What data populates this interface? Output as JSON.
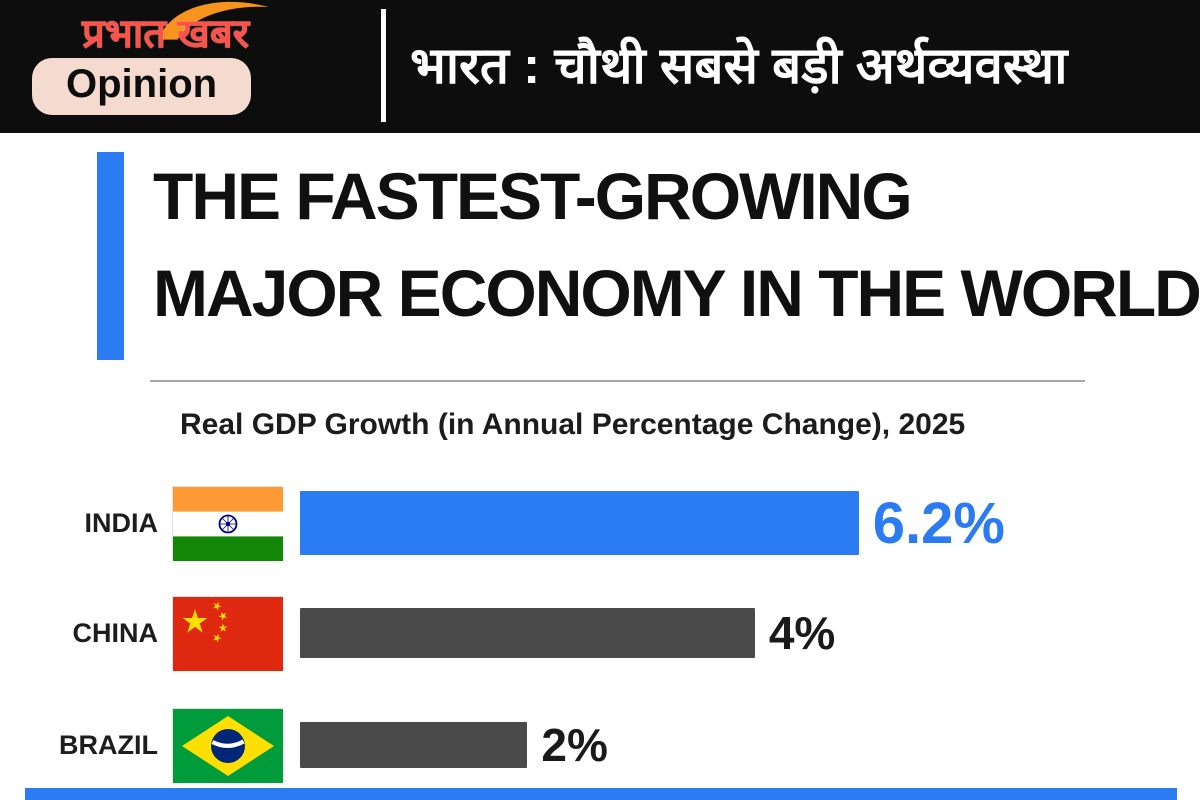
{
  "header": {
    "logo_text": "प्रभात खबर",
    "opinion_label": "Opinion",
    "headline": "भारत : चौथी सबसे बड़ी अर्थव्यवस्था"
  },
  "chart_data": {
    "type": "bar",
    "title": "THE FASTEST-GROWING MAJOR ECONOMY IN THE WORLD",
    "title_lines": [
      "THE FASTEST-GROWING",
      "MAJOR ECONOMY IN THE WORLD"
    ],
    "subtitle": "Real GDP Growth (in Annual Percentage Change), 2025",
    "categories": [
      "INDIA",
      "CHINA",
      "BRAZIL"
    ],
    "values": [
      6.2,
      4,
      2
    ],
    "value_labels": [
      "6.2%",
      "4%",
      "2%"
    ],
    "xlabel": "Real GDP Growth (Annual Percentage Change)",
    "xlim": [
      0,
      6.2
    ],
    "orientation": "horizontal",
    "grid": false,
    "bar_colors": [
      "#2b7bf3",
      "#4a4a4a",
      "#4a4a4a"
    ],
    "value_colors": [
      "#2b7bf3",
      "#1a1a1a",
      "#1a1a1a"
    ]
  },
  "colors": {
    "accent_blue": "#2b7bf3",
    "header_bg": "#0d0d0d",
    "badge_bg": "#f4dacf",
    "bar_gray": "#4a4a4a"
  }
}
